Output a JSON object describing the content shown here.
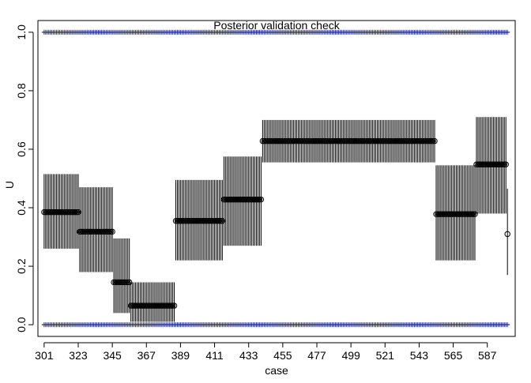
{
  "chart_data": {
    "type": "scatter",
    "title": "Posterior validation check",
    "xlabel": "case",
    "ylabel": "U",
    "xlim": [
      297,
      605
    ],
    "ylim": [
      -0.04,
      1.04
    ],
    "x_ticks": [
      301,
      323,
      345,
      367,
      389,
      411,
      433,
      455,
      477,
      499,
      521,
      543,
      565,
      587
    ],
    "y_ticks": [
      0.0,
      0.2,
      0.4,
      0.6,
      0.8,
      1.0
    ],
    "x_range": [
      301,
      600
    ],
    "groups": [
      {
        "x_start": 301,
        "x_end": 323,
        "median": 0.385,
        "lower": 0.26,
        "upper": 0.515
      },
      {
        "x_start": 324,
        "x_end": 345,
        "median": 0.318,
        "lower": 0.18,
        "upper": 0.47
      },
      {
        "x_start": 346,
        "x_end": 356,
        "median": 0.145,
        "lower": 0.04,
        "upper": 0.295
      },
      {
        "x_start": 357,
        "x_end": 385,
        "median": 0.065,
        "lower": 0.01,
        "upper": 0.145
      },
      {
        "x_start": 386,
        "x_end": 416,
        "median": 0.355,
        "lower": 0.22,
        "upper": 0.495
      },
      {
        "x_start": 417,
        "x_end": 441,
        "median": 0.428,
        "lower": 0.27,
        "upper": 0.575
      },
      {
        "x_start": 442,
        "x_end": 553,
        "median": 0.628,
        "lower": 0.555,
        "upper": 0.7
      },
      {
        "x_start": 554,
        "x_end": 579,
        "median": 0.378,
        "lower": 0.22,
        "upper": 0.545
      },
      {
        "x_start": 580,
        "x_end": 599,
        "median": 0.548,
        "lower": 0.38,
        "upper": 0.71
      },
      {
        "x_start": 600,
        "x_end": 600,
        "median": 0.31,
        "lower": 0.17,
        "upper": 0.465
      }
    ],
    "reference_lines": [
      0.0,
      1.0
    ],
    "reference_marker": "blue crosses",
    "median_marker": "open circle",
    "interval_style": "vertical segments",
    "grid": false,
    "legend": "none"
  },
  "colors": {
    "axis": "#000000",
    "interval": "#000000",
    "reference_marker": "#1f2a8c",
    "background": "#ffffff"
  }
}
